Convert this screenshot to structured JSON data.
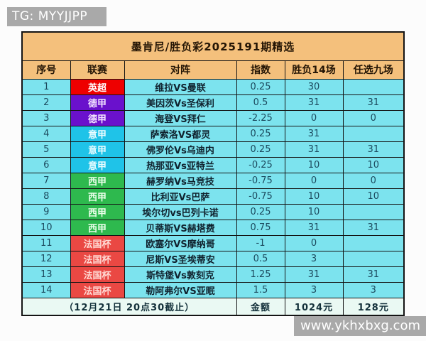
{
  "badge": {
    "text": "TG: MYYJJPP"
  },
  "watermark": {
    "text": "www.ykhxbxg.com"
  },
  "table": {
    "title": "墨肯尼/胜负彩2025191期精选",
    "headers": [
      "序号",
      "联赛",
      "对阵",
      "指数",
      "胜负14场",
      "任选九场"
    ],
    "league_colors": {
      "英超": {
        "bg": "#ee0000",
        "fg": "#ffffff"
      },
      "德甲": {
        "bg": "#6a11cc",
        "fg": "#f2e2ff"
      },
      "意甲": {
        "bg": "#1fc3e8",
        "fg": "#eafcff"
      },
      "西甲": {
        "bg": "#2eb94e",
        "fg": "#ebffeb"
      },
      "法国杯": {
        "bg": "#ea4843",
        "fg": "#ffd9d3"
      }
    },
    "rows": [
      {
        "no": "1",
        "league": "英超",
        "match": "维拉VS曼联",
        "index": "0.25",
        "sf14": "30",
        "rx9": ""
      },
      {
        "no": "2",
        "league": "德甲",
        "match": "美因茨Vs圣保利",
        "index": "0.5",
        "sf14": "31",
        "rx9": "31"
      },
      {
        "no": "3",
        "league": "德甲",
        "match": "海登VS拜仁",
        "index": "-2.25",
        "sf14": "0",
        "rx9": "0"
      },
      {
        "no": "4",
        "league": "意甲",
        "match": "萨索洛VS都灵",
        "index": "0.25",
        "sf14": "31",
        "rx9": ""
      },
      {
        "no": "5",
        "league": "意甲",
        "match": "佛罗伦Vs乌迪内",
        "index": "0.25",
        "sf14": "31",
        "rx9": "31"
      },
      {
        "no": "6",
        "league": "意甲",
        "match": "热那亚Vs亚特兰",
        "index": "-0.25",
        "sf14": "10",
        "rx9": "10"
      },
      {
        "no": "7",
        "league": "西甲",
        "match": "赫罗纳Vs马竞技",
        "index": "-0.75",
        "sf14": "0",
        "rx9": "0"
      },
      {
        "no": "8",
        "league": "西甲",
        "match": "比利亚Vs巴萨",
        "index": "-0.75",
        "sf14": "10",
        "rx9": "10"
      },
      {
        "no": "9",
        "league": "西甲",
        "match": "埃尔切vs巴列卡诺",
        "index": "0.25",
        "sf14": "10",
        "rx9": ""
      },
      {
        "no": "10",
        "league": "西甲",
        "match": "贝蒂斯VS赫塔费",
        "index": "0.75",
        "sf14": "31",
        "rx9": "31"
      },
      {
        "no": "11",
        "league": "法国杯",
        "match": "欧塞尔VS摩纳哥",
        "index": "-1",
        "sf14": "0",
        "rx9": ""
      },
      {
        "no": "12",
        "league": "法国杯",
        "match": "尼斯VS圣埃蒂安",
        "index": "0.5",
        "sf14": "3",
        "rx9": ""
      },
      {
        "no": "13",
        "league": "法国杯",
        "match": "斯特堡Vs敦刻克",
        "index": "1.25",
        "sf14": "31",
        "rx9": "31"
      },
      {
        "no": "14",
        "league": "法国杯",
        "match": "勒阿弗尔VS亚眠",
        "index": "1.5",
        "sf14": "3",
        "rx9": "3"
      }
    ],
    "footer": {
      "deadline": "（12月21日  20点30截止）",
      "amount_label": "金额",
      "amount_14": "1024元",
      "amount_9": "128元"
    }
  }
}
